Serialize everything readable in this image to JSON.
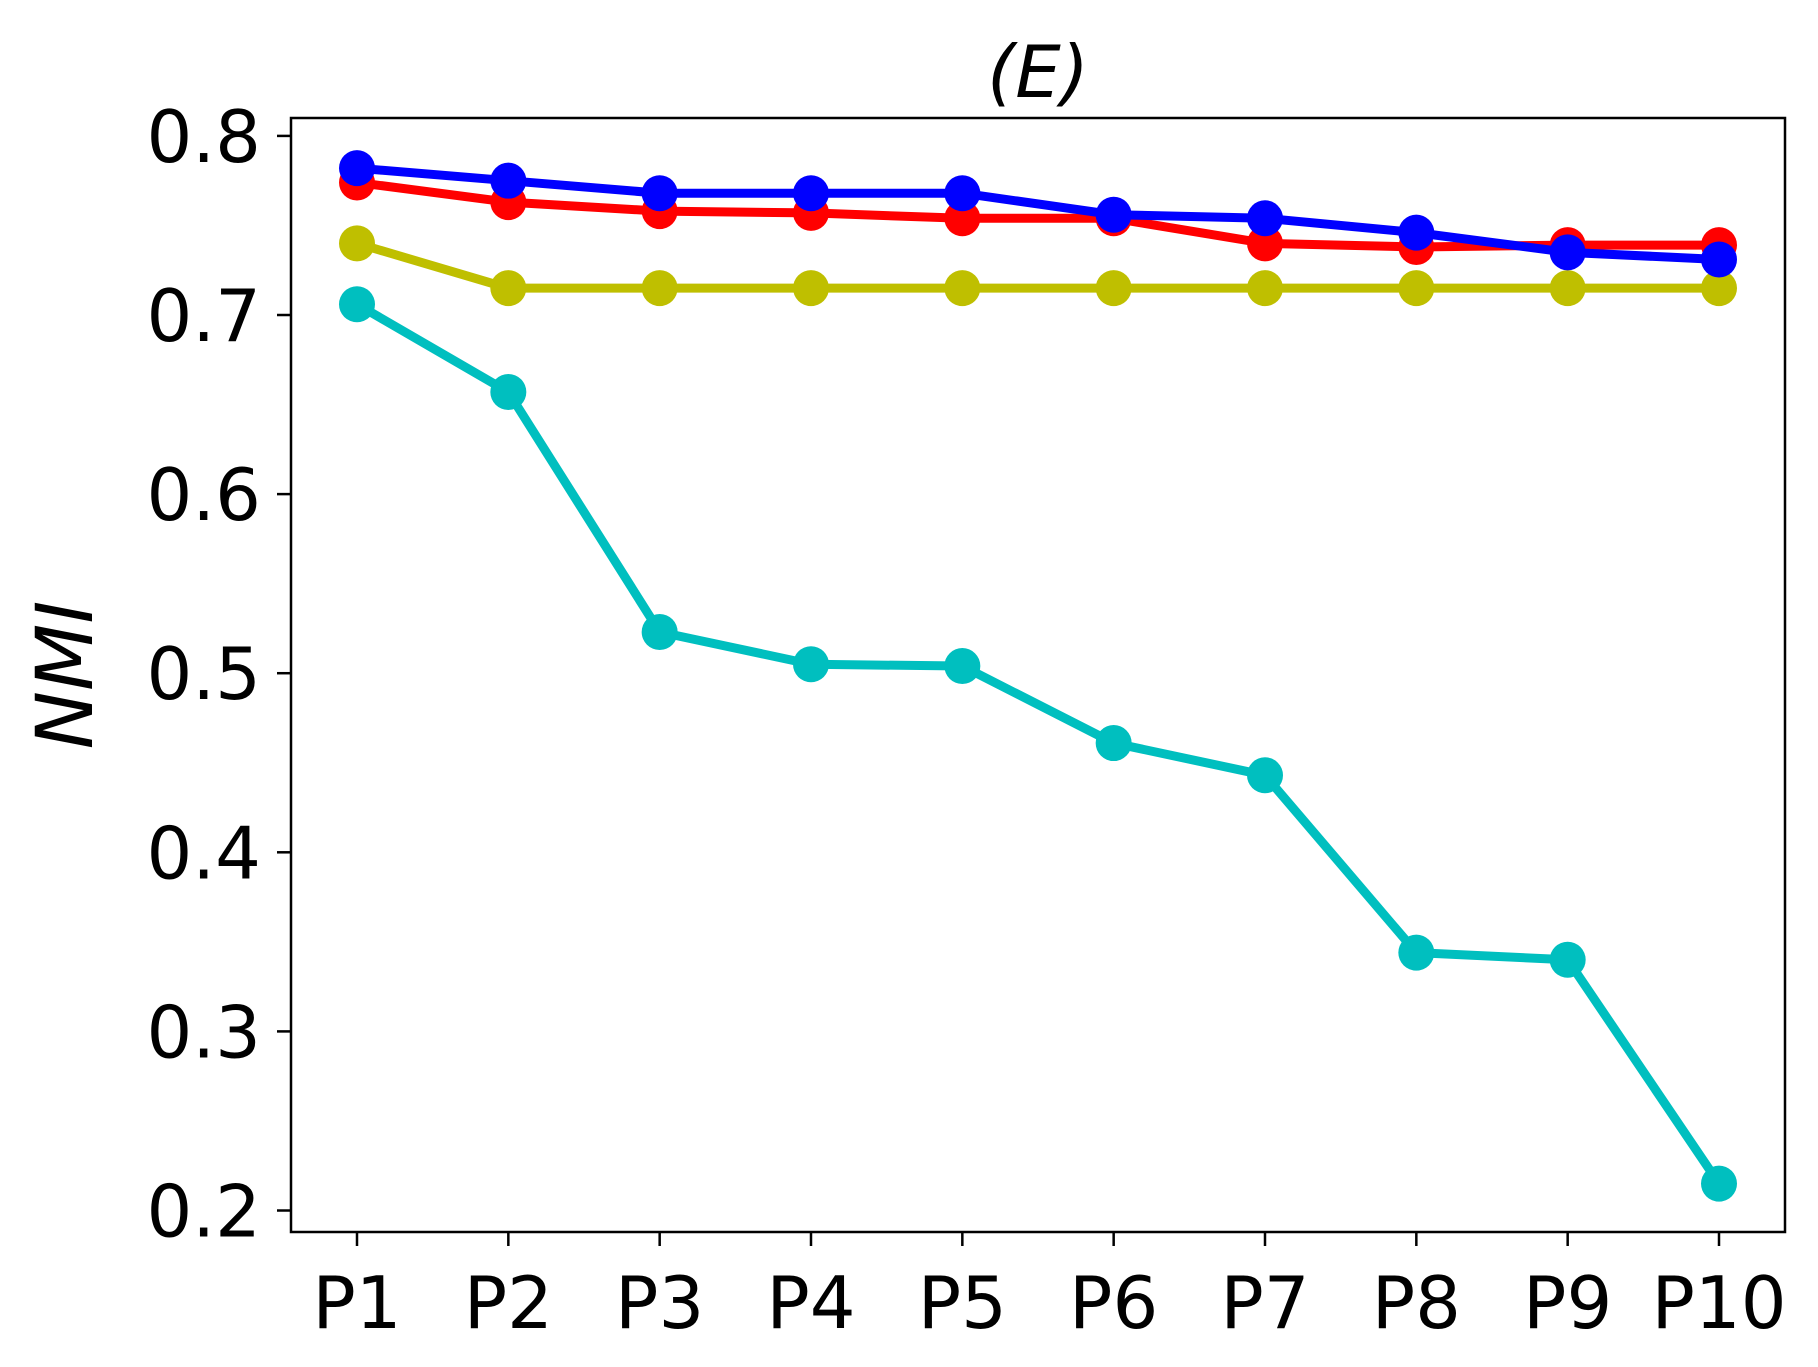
{
  "chart_data": {
    "type": "line",
    "title": "(E)",
    "xlabel": "",
    "ylabel": "NMI",
    "categories": [
      "P1",
      "P2",
      "P3",
      "P4",
      "P5",
      "P6",
      "P7",
      "P8",
      "P9",
      "P10"
    ],
    "ylim": [
      0.188,
      0.81
    ],
    "yticks": [
      0.2,
      0.3,
      0.4,
      0.5,
      0.6,
      0.7,
      0.8
    ],
    "ytick_labels": [
      "0.2",
      "0.3",
      "0.4",
      "0.5",
      "0.6",
      "0.7",
      "0.8"
    ],
    "grid": false,
    "series": [
      {
        "name": "red",
        "color": "#ff0000",
        "values": [
          0.774,
          0.763,
          0.758,
          0.757,
          0.754,
          0.754,
          0.74,
          0.738,
          0.739,
          0.739
        ]
      },
      {
        "name": "yellow",
        "color": "#bfbf00",
        "values": [
          0.74,
          0.715,
          0.715,
          0.715,
          0.715,
          0.715,
          0.715,
          0.715,
          0.715,
          0.715
        ]
      },
      {
        "name": "cyan",
        "color": "#00bfbf",
        "values": [
          0.706,
          0.657,
          0.523,
          0.505,
          0.504,
          0.461,
          0.443,
          0.344,
          0.34,
          0.215
        ]
      },
      {
        "name": "blue",
        "color": "#0000ff",
        "values": [
          0.782,
          0.775,
          0.768,
          0.768,
          0.768,
          0.756,
          0.754,
          0.746,
          0.735,
          0.731
        ]
      }
    ]
  }
}
